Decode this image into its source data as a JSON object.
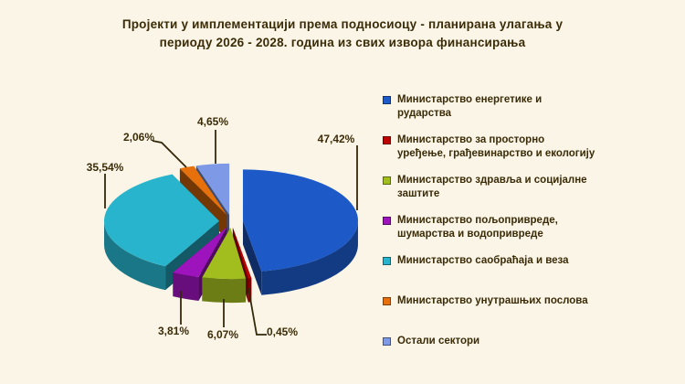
{
  "title": {
    "line1": "Пројекти у имплементацији према подносиоцу - планирана улагања у",
    "line2": "периоду 2026 - 2028. година из свих извора финансирања"
  },
  "colors": {
    "background": "#FBF5E7",
    "text": "#3B2C08",
    "leader_line": "#35280A"
  },
  "chart_data": {
    "type": "pie",
    "style": "3d-exploded",
    "title": "Пројекти у имплементацији према подносиоцу - планирана улагања у периоду 2026 - 2028. година из свих извора финансирања",
    "unit": "%",
    "legend_position": "right",
    "start_angle_deg": 0,
    "direction": "clockwise",
    "slices": [
      {
        "label": "Министарство енергетике и\nрударства",
        "value": 47.42,
        "pct_label": "47,42%",
        "color": "#1D5AC8"
      },
      {
        "label": "Министарство за просторно\nуређење, грађевинарство и екологију",
        "value": 0.45,
        "pct_label": "0,45%",
        "color": "#BE0202"
      },
      {
        "label": "Министарство здравља и социјалне\nзаштите",
        "value": 6.07,
        "pct_label": "6,07%",
        "color": "#A2BE1E"
      },
      {
        "label": "Министарство пољопривреде,\nшумарства и водопривреде",
        "value": 3.81,
        "pct_label": "3,81%",
        "color": "#9E14BC"
      },
      {
        "label": "Министарство саобраћаја и веза",
        "value": 35.54,
        "pct_label": "35,54%",
        "color": "#28B4CC"
      },
      {
        "label": "Министарство унутрашњих послова",
        "value": 2.06,
        "pct_label": "2,06%",
        "color": "#E5700C"
      },
      {
        "label": "Остали сектори",
        "value": 4.65,
        "pct_label": "4,65%",
        "color": "#7E99E6"
      }
    ]
  }
}
